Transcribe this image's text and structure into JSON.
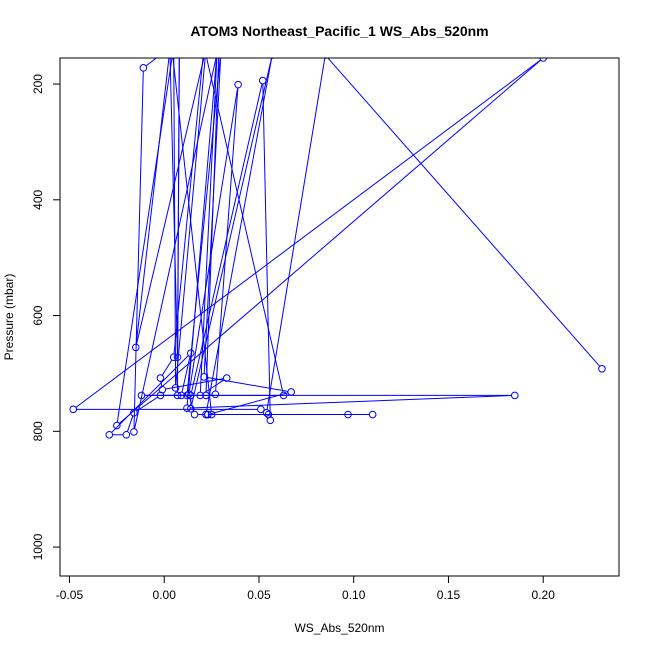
{
  "chart_data": {
    "type": "line",
    "title": "ATOM3 Northeast_Pacific_1 WS_Abs_520nm",
    "xlabel": "WS_Abs_520nm",
    "ylabel": "Pressure (mbar)",
    "xlim": [
      -0.055,
      0.24
    ],
    "ylim": [
      1050,
      155
    ],
    "y_inverted": true,
    "x_ticks": [
      -0.05,
      0.0,
      0.05,
      0.1,
      0.15,
      0.2
    ],
    "x_tick_labels": [
      "-0.05",
      "0.00",
      "0.05",
      "0.10",
      "0.15",
      "0.20"
    ],
    "y_ticks": [
      200,
      400,
      600,
      800,
      1000
    ],
    "y_tick_labels": [
      "200",
      "400",
      "600",
      "800",
      "1000"
    ],
    "grid": false,
    "legend": "none",
    "series": [
      {
        "color": "#0000ff",
        "marker": "open-circle",
        "points": [
          {
            "x": 0.231,
            "y": 692
          },
          {
            "x": 0.085,
            "y": 150
          },
          {
            "x": 0.054,
            "y": 768
          },
          {
            "x": 0.051,
            "y": 762
          },
          {
            "x": -0.048,
            "y": 762
          },
          {
            "x": 0.2,
            "y": 155
          },
          {
            "x": -0.025,
            "y": 790
          },
          {
            "x": 0.005,
            "y": 135
          },
          {
            "x": 0.006,
            "y": 725
          },
          {
            "x": 0.022,
            "y": 140
          },
          {
            "x": -0.015,
            "y": 655
          },
          {
            "x": 0.003,
            "y": 140
          },
          {
            "x": 0.007,
            "y": 672
          },
          {
            "x": 0.008,
            "y": 125
          },
          {
            "x": 0.007,
            "y": 738
          },
          {
            "x": 0.185,
            "y": 738
          },
          {
            "x": 0.012,
            "y": 760
          },
          {
            "x": 0.028,
            "y": 140
          },
          {
            "x": 0.019,
            "y": 738
          },
          {
            "x": 0.033,
            "y": 708
          },
          {
            "x": -0.001,
            "y": 728
          },
          {
            "x": -0.002,
            "y": 708
          },
          {
            "x": 0.005,
            "y": 672
          },
          {
            "x": 0.021,
            "y": 135
          },
          {
            "x": 0.063,
            "y": 738
          },
          {
            "x": -0.012,
            "y": 738
          },
          {
            "x": 0.009,
            "y": 738
          },
          {
            "x": 0.014,
            "y": 665
          },
          {
            "x": -0.029,
            "y": 806
          },
          {
            "x": -0.02,
            "y": 806
          },
          {
            "x": -0.016,
            "y": 768
          },
          {
            "x": -0.002,
            "y": 738
          },
          {
            "x": 0.012,
            "y": 738
          },
          {
            "x": 0.03,
            "y": 140
          },
          {
            "x": 0.021,
            "y": 706
          },
          {
            "x": 0.067,
            "y": 732
          },
          {
            "x": 0.023,
            "y": 771
          },
          {
            "x": 0.023,
            "y": 771
          },
          {
            "x": 0.016,
            "y": 771
          },
          {
            "x": 0.013,
            "y": 736
          },
          {
            "x": 0.039,
            "y": 201
          },
          {
            "x": 0.027,
            "y": 736
          },
          {
            "x": 0.022,
            "y": 738
          },
          {
            "x": 0.029,
            "y": 130
          },
          {
            "x": -0.016,
            "y": 801
          },
          {
            "x": -0.011,
            "y": 172
          },
          {
            "x": 0.004,
            "y": 135
          },
          {
            "x": 0.025,
            "y": 771
          },
          {
            "x": 0.055,
            "y": 771
          },
          {
            "x": 0.097,
            "y": 771
          },
          {
            "x": 0.11,
            "y": 771
          },
          {
            "x": 0.022,
            "y": 771
          },
          {
            "x": 0.057,
            "y": 150
          },
          {
            "x": 0.014,
            "y": 761
          },
          {
            "x": 0.014,
            "y": 738
          },
          {
            "x": 0.052,
            "y": 194
          },
          {
            "x": 0.056,
            "y": 781
          }
        ]
      }
    ]
  }
}
